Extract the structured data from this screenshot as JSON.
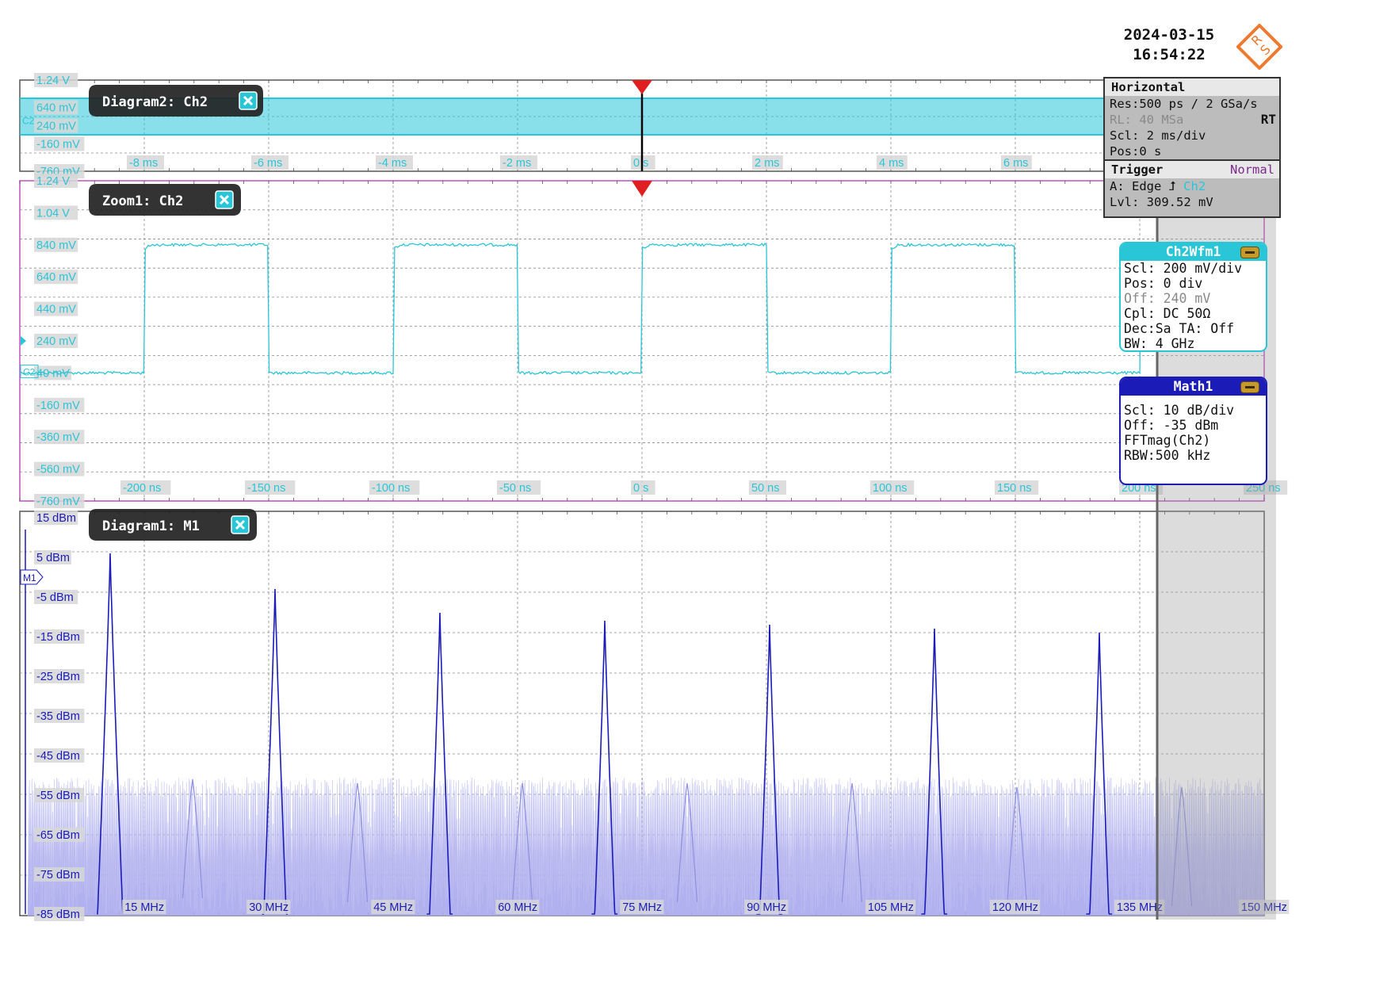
{
  "timestamp": {
    "date": "2024-03-15",
    "time": "16:54:22"
  },
  "logo": {
    "text": "RS",
    "color": "#ee7a30"
  },
  "colors": {
    "ch2": "#29c6d8",
    "math": "#1b1bb8",
    "trigger": "#e02020",
    "grid": "#8a8a8a"
  },
  "horizontal_panel": {
    "title": "Horizontal",
    "res": "Res:500 ps / 2 GSa/s",
    "rl": "RL: 40 MSa",
    "rt": "RT",
    "scl": "Scl: 2 ms/div",
    "pos": "Pos:0 s",
    "trigger_title": "Trigger",
    "trigger_mode": "Normal",
    "trigger_type": "A:   Edge",
    "trigger_source": "Ch2",
    "trigger_level": "Lvl: 309.52 mV"
  },
  "ch2_panel": {
    "title": "Ch2Wfm1",
    "scl": "Scl: 200 mV/div",
    "pos": "Pos: 0 div",
    "off": "Off: 240 mV",
    "cpl": "Cpl: DC 50Ω",
    "dec": "Dec:Sa   TA: Off",
    "bw": "BW: 4 GHz"
  },
  "math_panel": {
    "title": "Math1",
    "scl": "Scl:  10 dB/div",
    "off": "Off:  -35 dBm",
    "fn": "FFTmag(Ch2)",
    "rbw": "RBW:500 kHz"
  },
  "diagram2": {
    "title": "Diagram2: Ch2",
    "y_labels": [
      "1.24 V",
      "640 mV",
      "240 mV",
      "-160 mV",
      "-760 mV"
    ],
    "x_labels": [
      "-8 ms",
      "-6 ms",
      "-4 ms",
      "-2 ms",
      "0 s",
      "2 ms",
      "4 ms",
      "6 ms"
    ]
  },
  "zoom1": {
    "title": "Zoom1: Ch2",
    "y_labels": [
      "1.24 V",
      "1.04 V",
      "840 mV",
      "640 mV",
      "440 mV",
      "240 mV",
      "40 mV",
      "-160 mV",
      "-360 mV",
      "-560 mV",
      "-760 mV"
    ],
    "x_labels": [
      "-200 ns",
      "-150 ns",
      "-100 ns",
      "-50 ns",
      "0 s",
      "50 ns",
      "100 ns",
      "150 ns",
      "200 ns",
      "250 ns"
    ],
    "marker": "C2",
    "waveform": {
      "x_start_ns": -250,
      "x_end_ns": 250,
      "period_ns": 100,
      "high_mV": 840,
      "low_mV": 40,
      "first_rising_ns": -200
    }
  },
  "diagram1": {
    "title": "Diagram1: M1",
    "y_labels": [
      "15 dBm",
      "5 dBm",
      "-5 dBm",
      "-15 dBm",
      "-25 dBm",
      "-35 dBm",
      "-45 dBm",
      "-55 dBm",
      "-65 dBm",
      "-75 dBm",
      "-85 dBm"
    ],
    "x_labels": [
      "15 MHz",
      "30 MHz",
      "45 MHz",
      "60 MHz",
      "75 MHz",
      "90 MHz",
      "105 MHz",
      "120 MHz",
      "135 MHz",
      "150 MHz"
    ],
    "marker": "M1",
    "spectrum": {
      "x_range_MHz": [
        0,
        150
      ],
      "y_range_dBm": [
        -85,
        15
      ],
      "noise_floor_dBm": -54,
      "peaks_MHz": [
        10,
        30,
        50,
        70,
        90,
        110,
        130
      ],
      "peaks_dBm": [
        6,
        -3,
        -9,
        -11,
        -12,
        -13,
        -14
      ],
      "minor_peaks_MHz": [
        20,
        40,
        60,
        80,
        100,
        120,
        140
      ],
      "minor_peaks_dBm": [
        -51,
        -52,
        -52,
        -52,
        -52,
        -53,
        -53
      ]
    }
  }
}
